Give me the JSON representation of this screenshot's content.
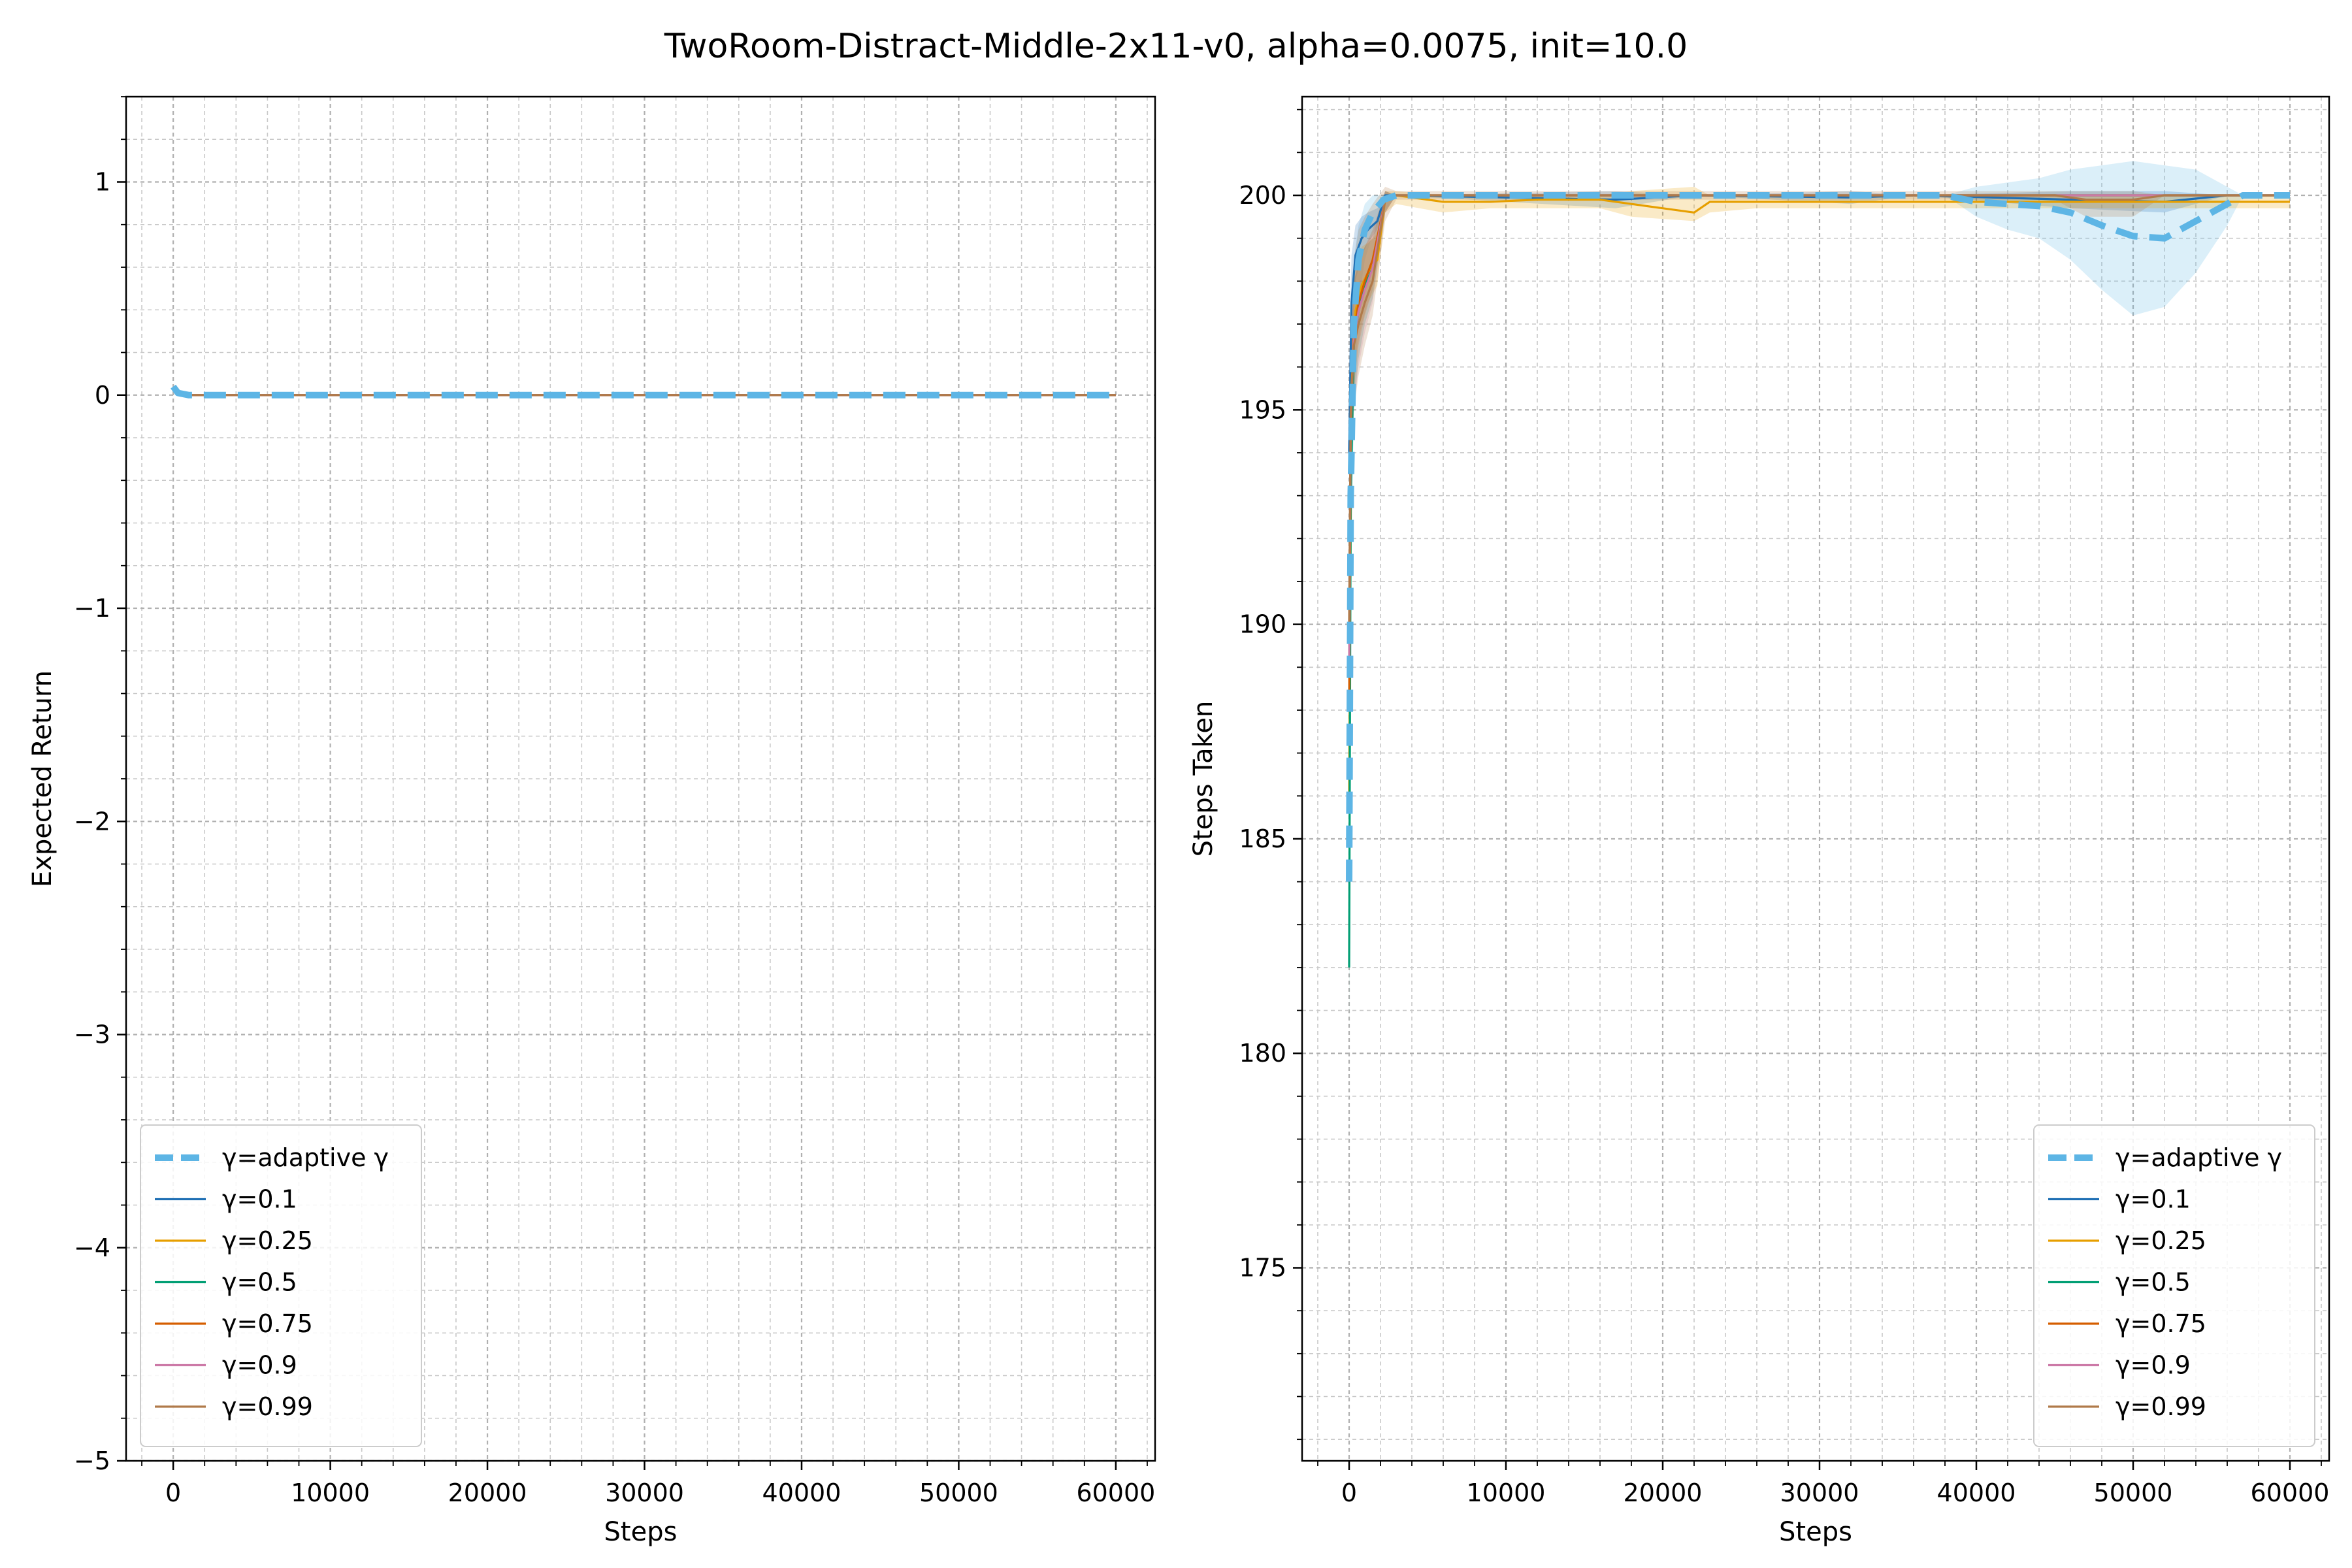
{
  "figure": {
    "title": "TwoRoom-Distract-Middle-2x11-v0, alpha=0.0075, init=10.0"
  },
  "colors": {
    "adaptive": "#5DB5E5",
    "g01": "#1F6FB4",
    "g025": "#E69F00",
    "g05": "#009E73",
    "g075": "#D55E00",
    "g09": "#CC79A7",
    "g099": "#B07A4A"
  },
  "chart_data": [
    {
      "type": "line",
      "xlabel": "Steps",
      "ylabel": "Expected Return",
      "xlim": [
        -3000,
        62500
      ],
      "ylim": [
        -5,
        1.4
      ],
      "xticks": [
        0,
        10000,
        20000,
        30000,
        40000,
        50000,
        60000
      ],
      "xtick_labels": [
        "0",
        "10000",
        "20000",
        "30000",
        "40000",
        "50000",
        "60000"
      ],
      "yticks": [
        -5,
        -4,
        -3,
        -2,
        -1,
        0,
        1
      ],
      "ytick_labels": [
        "−5",
        "−4",
        "−3",
        "−2",
        "−1",
        "0",
        "1"
      ],
      "grid": true,
      "legend_position": "lower-left",
      "series": [
        {
          "name": "γ=adaptive γ",
          "style": "dashed",
          "x": [
            0,
            300,
            1000,
            60000
          ],
          "y": [
            0.04,
            0.01,
            0.0,
            0.0
          ]
        },
        {
          "name": "γ=0.1",
          "x": [
            0,
            300,
            1000,
            60000
          ],
          "y": [
            0.03,
            0.01,
            0.0,
            0.0
          ]
        },
        {
          "name": "γ=0.25",
          "x": [
            0,
            300,
            1000,
            60000
          ],
          "y": [
            0.03,
            0.01,
            0.0,
            0.0
          ]
        },
        {
          "name": "γ=0.5",
          "x": [
            0,
            300,
            1000,
            60000
          ],
          "y": [
            0.03,
            0.01,
            0.0,
            0.0
          ]
        },
        {
          "name": "γ=0.75",
          "x": [
            0,
            300,
            1000,
            60000
          ],
          "y": [
            0.03,
            0.01,
            0.0,
            0.0
          ]
        },
        {
          "name": "γ=0.9",
          "x": [
            0,
            300,
            1000,
            60000
          ],
          "y": [
            0.03,
            0.01,
            0.0,
            0.0
          ]
        },
        {
          "name": "γ=0.99",
          "x": [
            0,
            300,
            1000,
            60000
          ],
          "y": [
            0.03,
            0.01,
            0.0,
            0.0
          ]
        }
      ]
    },
    {
      "type": "line",
      "xlabel": "Steps",
      "ylabel": "Steps Taken",
      "xlim": [
        -3000,
        62500
      ],
      "ylim": [
        170.5,
        202.3
      ],
      "xticks": [
        0,
        10000,
        20000,
        30000,
        40000,
        50000,
        60000
      ],
      "xtick_labels": [
        "0",
        "10000",
        "20000",
        "30000",
        "40000",
        "50000",
        "60000"
      ],
      "yticks": [
        175,
        180,
        185,
        190,
        195,
        200
      ],
      "ytick_labels": [
        "175",
        "180",
        "185",
        "190",
        "195",
        "200"
      ],
      "grid": true,
      "legend_position": "lower-right",
      "series": [
        {
          "name": "γ=adaptive γ",
          "style": "dashed",
          "x": [
            0,
            100,
            300,
            600,
            1000,
            1500,
            2200,
            3000,
            38000,
            40000,
            42000,
            44000,
            46000,
            48000,
            50000,
            52000,
            54000,
            56000,
            57000,
            60000
          ],
          "y": [
            184,
            193,
            197,
            198.5,
            199.2,
            199.6,
            199.9,
            200,
            200,
            199.85,
            199.8,
            199.75,
            199.6,
            199.3,
            199.05,
            199.0,
            199.4,
            199.8,
            200,
            200
          ],
          "lo": [
            183,
            191,
            195,
            197.5,
            198.5,
            199.1,
            199.6,
            200,
            200,
            199.5,
            199.2,
            199.0,
            198.5,
            197.8,
            197.2,
            197.4,
            198.2,
            199.3,
            200,
            200
          ],
          "hi": [
            185,
            195,
            198.5,
            199.3,
            199.8,
            200,
            200,
            200,
            200,
            200.2,
            200.3,
            200.4,
            200.6,
            200.7,
            200.8,
            200.7,
            200.6,
            200.2,
            200,
            200
          ]
        },
        {
          "name": "γ=0.1",
          "x": [
            0,
            150,
            400,
            800,
            1200,
            1800,
            2300,
            3000,
            17000,
            22000,
            32000,
            36000,
            46000,
            52000,
            56000,
            60000
          ],
          "y": [
            194,
            197.5,
            198.6,
            199.0,
            199.2,
            199.4,
            200,
            200,
            199.9,
            200,
            199.95,
            200,
            199.9,
            199.85,
            200,
            200
          ],
          "lo": [
            192,
            196.5,
            198.0,
            198.6,
            198.9,
            199.2,
            199.9,
            200,
            199.7,
            200,
            199.8,
            200,
            199.7,
            199.6,
            200,
            200
          ],
          "hi": [
            196,
            198.6,
            199.3,
            199.5,
            199.6,
            199.7,
            200.1,
            200,
            200.1,
            200,
            200.1,
            200,
            200.1,
            200.1,
            200,
            200
          ]
        },
        {
          "name": "γ=0.25",
          "x": [
            0,
            150,
            400,
            800,
            1200,
            1800,
            2300,
            3000,
            6000,
            9000,
            12000,
            16000,
            18000,
            22000,
            23000,
            26000,
            58000,
            60000
          ],
          "y": [
            186,
            195.5,
            197.3,
            197.9,
            198.2,
            198.5,
            199.9,
            200,
            199.85,
            199.85,
            199.9,
            199.9,
            199.8,
            199.6,
            199.85,
            199.85,
            199.85,
            199.85
          ],
          "lo": [
            184,
            194.0,
            196.2,
            197.0,
            197.5,
            197.9,
            199.6,
            199.8,
            199.6,
            199.7,
            199.7,
            199.7,
            199.5,
            199.4,
            199.6,
            199.7,
            199.7,
            199.7
          ],
          "hi": [
            188,
            197.0,
            198.4,
            198.8,
            198.9,
            199.1,
            200.1,
            200.1,
            200.0,
            200.0,
            200.0,
            200.0,
            200.1,
            200.2,
            200.0,
            200.0,
            200.0,
            200.0
          ]
        },
        {
          "name": "γ=0.5",
          "x": [
            0,
            100,
            300,
            600,
            1000,
            1500,
            2300,
            3000,
            60000
          ],
          "y": [
            182,
            193,
            196.5,
            197.3,
            197.9,
            198.3,
            199.9,
            200,
            200
          ],
          "lo": [
            180.5,
            191,
            195.0,
            196.2,
            197.0,
            197.6,
            199.6,
            200,
            200
          ],
          "hi": [
            183.5,
            195,
            198.0,
            198.4,
            198.8,
            199.0,
            200.1,
            200,
            200
          ]
        },
        {
          "name": "γ=0.75",
          "x": [
            0,
            100,
            300,
            600,
            1000,
            1500,
            2300,
            3000,
            60000
          ],
          "y": [
            188,
            194.5,
            196.8,
            197.5,
            198.0,
            198.5,
            199.9,
            200,
            200
          ],
          "lo": [
            186,
            193,
            195.5,
            196.5,
            197.2,
            197.8,
            199.6,
            200,
            200
          ],
          "hi": [
            190,
            196,
            198.0,
            198.5,
            198.8,
            199.2,
            200.1,
            200,
            200
          ]
        },
        {
          "name": "γ=0.9",
          "x": [
            0,
            100,
            300,
            600,
            1000,
            1500,
            2300,
            3000,
            60000
          ],
          "y": [
            189,
            194.8,
            196.6,
            197.3,
            197.8,
            198.3,
            199.9,
            200,
            200
          ],
          "lo": [
            187,
            193,
            195.0,
            196.0,
            196.8,
            197.5,
            199.6,
            200,
            200
          ],
          "hi": [
            191,
            196.5,
            198.0,
            198.5,
            198.8,
            199.1,
            200.1,
            200,
            200
          ]
        },
        {
          "name": "γ=0.99",
          "x": [
            0,
            100,
            300,
            600,
            1000,
            1500,
            2300,
            3000,
            45000,
            47000,
            50000,
            52000,
            60000
          ],
          "y": [
            190,
            195,
            196.5,
            197.0,
            197.5,
            198.0,
            199.9,
            200,
            200,
            199.9,
            199.9,
            200,
            200
          ],
          "lo": [
            188,
            193,
            195.0,
            195.8,
            196.5,
            197.2,
            199.4,
            199.9,
            199.9,
            199.5,
            199.5,
            200,
            200
          ],
          "hi": [
            192,
            197,
            198.5,
            199.2,
            199.5,
            199.8,
            200.2,
            200.1,
            200.1,
            200.1,
            200.1,
            200,
            200
          ]
        }
      ]
    }
  ]
}
